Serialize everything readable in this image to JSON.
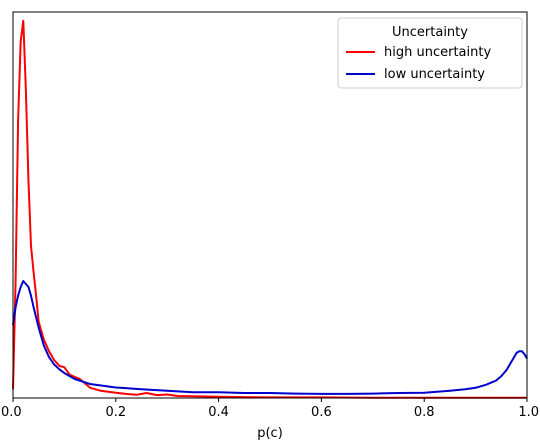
{
  "chart_data": {
    "type": "line",
    "xlabel": "p(c)",
    "ylabel": "",
    "xlim": [
      0.0,
      1.0
    ],
    "ylim": [
      0,
      13.2
    ],
    "x_ticks": [
      "0.0",
      "0.2",
      "0.4",
      "0.6",
      "0.8",
      "1.0"
    ],
    "y_ticks_visible": false,
    "grid": false,
    "legend": {
      "title": "Uncertainty",
      "placement": "top-right",
      "entries": [
        "high uncertainty",
        "low uncertainty"
      ]
    },
    "series": [
      {
        "name": "high uncertainty",
        "color": "#ff0000",
        "x": [
          0.0,
          0.005,
          0.01,
          0.015,
          0.02,
          0.025,
          0.03,
          0.035,
          0.04,
          0.045,
          0.05,
          0.06,
          0.07,
          0.08,
          0.09,
          0.1,
          0.11,
          0.12,
          0.13,
          0.14,
          0.15,
          0.17,
          0.2,
          0.22,
          0.24,
          0.26,
          0.28,
          0.3,
          0.32,
          0.35,
          0.4,
          0.45,
          0.5,
          0.6,
          0.7,
          0.8,
          0.9,
          1.0
        ],
        "y": [
          0.3,
          4.0,
          9.5,
          12.2,
          12.9,
          10.5,
          7.5,
          5.2,
          4.3,
          3.5,
          2.6,
          2.0,
          1.6,
          1.3,
          1.1,
          1.05,
          0.8,
          0.72,
          0.65,
          0.5,
          0.35,
          0.25,
          0.18,
          0.14,
          0.11,
          0.17,
          0.1,
          0.12,
          0.07,
          0.06,
          0.04,
          0.03,
          0.02,
          0.02,
          0.01,
          0.01,
          0.01,
          0.01
        ]
      },
      {
        "name": "low uncertainty",
        "color": "#0000cc",
        "x": [
          0.0,
          0.005,
          0.01,
          0.015,
          0.02,
          0.025,
          0.03,
          0.035,
          0.04,
          0.05,
          0.06,
          0.07,
          0.08,
          0.09,
          0.1,
          0.12,
          0.15,
          0.2,
          0.25,
          0.3,
          0.35,
          0.4,
          0.45,
          0.5,
          0.55,
          0.6,
          0.65,
          0.7,
          0.75,
          0.8,
          0.85,
          0.88,
          0.9,
          0.92,
          0.94,
          0.95,
          0.96,
          0.97,
          0.98,
          0.985,
          0.99,
          0.995,
          1.0
        ],
        "y": [
          2.5,
          3.1,
          3.5,
          3.8,
          4.0,
          3.9,
          3.8,
          3.5,
          3.1,
          2.4,
          1.8,
          1.4,
          1.15,
          0.98,
          0.85,
          0.65,
          0.48,
          0.36,
          0.3,
          0.25,
          0.2,
          0.2,
          0.17,
          0.17,
          0.15,
          0.14,
          0.14,
          0.15,
          0.17,
          0.18,
          0.25,
          0.3,
          0.35,
          0.45,
          0.6,
          0.75,
          0.95,
          1.25,
          1.55,
          1.6,
          1.6,
          1.5,
          1.35
        ]
      }
    ]
  }
}
